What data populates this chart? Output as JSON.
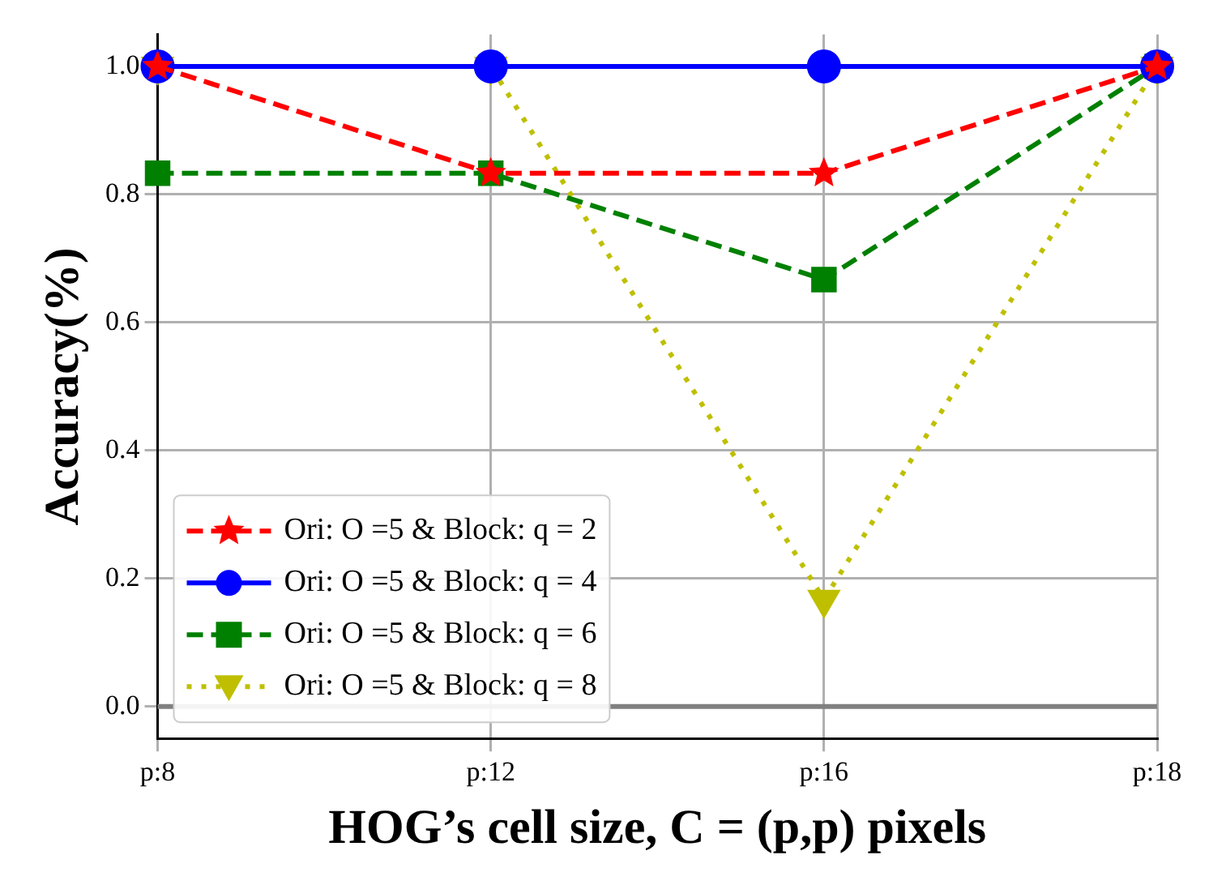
{
  "chart_data": {
    "type": "line",
    "xlabel": "HOG’s cell size, C = (p,p) pixels",
    "ylabel": "Accuracy(%)",
    "categories": [
      "p:8",
      "p:12",
      "p:16",
      "p:18"
    ],
    "series": [
      {
        "name": "Ori: O =5 & Block: q = 2",
        "color": "#ff0000",
        "values": [
          1.0,
          0.833,
          0.833,
          1.0
        ],
        "marker": "star",
        "line_style": "dashed"
      },
      {
        "name": "Ori: O =5 & Block: q = 4",
        "color": "#0000ff",
        "values": [
          1.0,
          1.0,
          1.0,
          1.0
        ],
        "marker": "circle",
        "line_style": "solid"
      },
      {
        "name": "Ori: O =5 & Block: q = 6",
        "color": "#008000",
        "values": [
          0.833,
          0.833,
          0.667,
          1.0
        ],
        "marker": "square",
        "line_style": "dashed"
      },
      {
        "name": "Ori: O =5 & Block: q = 8",
        "color": "#bfbf00",
        "values": [
          1.0,
          1.0,
          0.167,
          1.0
        ],
        "marker": "triangle",
        "line_style": "dotted"
      }
    ],
    "ylim": [
      -0.05,
      1.05
    ],
    "yticks": [
      {
        "value": 0,
        "label": "0.0"
      },
      0.2,
      0.4,
      0.6,
      0.8,
      {
        "value": 1,
        "label": "1.0"
      }
    ],
    "ref_lines": [
      {
        "axis": "y",
        "value": 0,
        "color": "#808080"
      }
    ],
    "grid": true,
    "legend": "bottom left"
  }
}
